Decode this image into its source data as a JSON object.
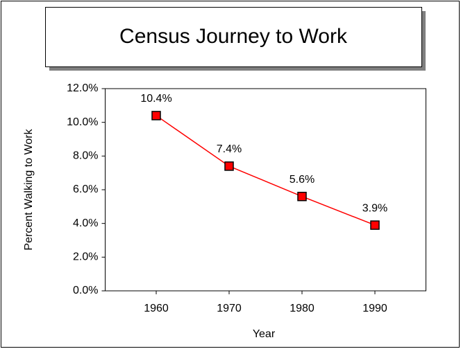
{
  "chart_data": {
    "type": "line",
    "title": "Census Journey to Work",
    "x_label": "Year",
    "y_label": "Percent Walking to Work",
    "x": [
      1960,
      1970,
      1980,
      1990
    ],
    "series": [
      {
        "name": "Percent Walking to Work",
        "color": "#ff0000",
        "values": [
          10.4,
          7.4,
          5.6,
          3.9
        ],
        "value_labels": [
          "10.4%",
          "7.4%",
          "5.6%",
          "3.9%"
        ]
      }
    ],
    "xlim": [
      1953,
      1997
    ],
    "xticks": [
      1960,
      1970,
      1980,
      1990
    ],
    "ylim": [
      0,
      12
    ],
    "yticks": [
      {
        "value": 0,
        "label": "0.0%"
      },
      {
        "value": 2,
        "label": "2.0%"
      },
      {
        "value": 4,
        "label": "4.0%"
      },
      {
        "value": 6,
        "label": "6.0%"
      },
      {
        "value": 8,
        "label": "8.0%"
      },
      {
        "value": 10,
        "label": "10.0%"
      },
      {
        "value": 12,
        "label": "12.0%"
      }
    ]
  }
}
